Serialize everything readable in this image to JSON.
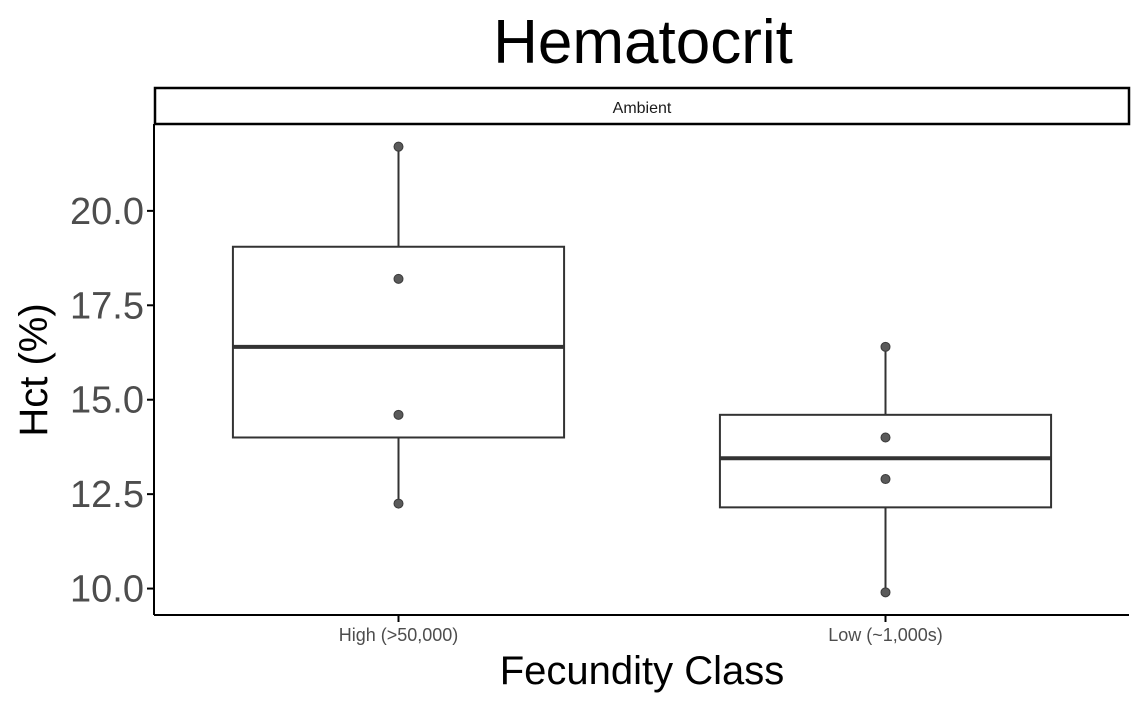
{
  "chart_data": {
    "type": "boxplot",
    "title": "Hematocrit",
    "facet": "Ambient",
    "xlabel": "Fecundity Class",
    "ylabel": "Hct (%)",
    "ylim": [
      9.3,
      22.3
    ],
    "yticks": [
      10.0,
      12.5,
      15.0,
      17.5,
      20.0
    ],
    "ytick_labels": [
      "10.0",
      "12.5",
      "15.0",
      "17.5",
      "20.0"
    ],
    "grid": false,
    "categories": [
      "High (>50,000)",
      "Low (~1,000s)"
    ],
    "boxes": [
      {
        "q1": 14.0,
        "median": 16.4,
        "q3": 19.05,
        "whisker_low": 12.25,
        "whisker_high": 21.7
      },
      {
        "q1": 12.15,
        "median": 13.45,
        "q3": 14.6,
        "whisker_low": 9.9,
        "whisker_high": 16.4
      }
    ],
    "points": [
      [
        21.7,
        18.2,
        14.6,
        12.25
      ],
      [
        16.4,
        14.0,
        12.9,
        9.9
      ]
    ],
    "colors": {
      "box": "#333333",
      "point": "#5a5a5a",
      "axis": "#000000",
      "text": "#000000",
      "tick_text": "#4d4d4d"
    }
  }
}
